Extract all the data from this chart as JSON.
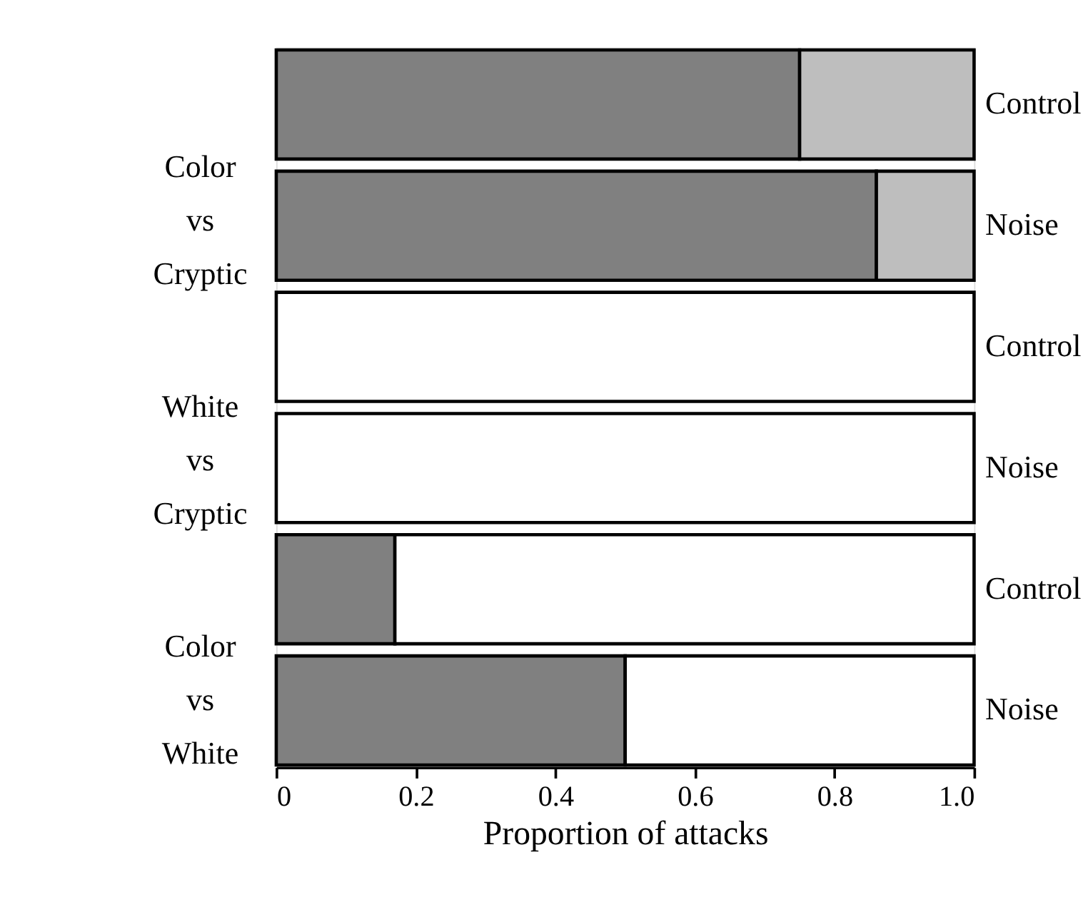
{
  "chart_data": {
    "type": "bar",
    "orientation": "horizontal",
    "stacked": true,
    "xlabel": "Proportion of attacks",
    "categories": [
      "Control",
      "Noise",
      "Control",
      "Noise",
      "Control",
      "Noise"
    ],
    "series": [
      {
        "color": "#808080",
        "values": [
          0.75,
          0.86,
          null,
          null,
          0.17,
          0.5
        ]
      },
      {
        "color": "#bebebe",
        "values": [
          0.25,
          0.14,
          null,
          null,
          null,
          null
        ]
      },
      {
        "color": "#ffffff",
        "values": [
          null,
          null,
          1.0,
          1.0,
          0.83,
          0.5
        ]
      }
    ],
    "xlim": [
      0,
      1
    ],
    "xticks": [
      0,
      0.2,
      0.4,
      0.6,
      0.8,
      {
        "value": 1,
        "label": "1.0"
      }
    ],
    "annotations": [
      "Color\nvs\nCryptic",
      "White\nvs\nCryptic",
      "Color\nvs\nWhite"
    ],
    "grid": false
  }
}
